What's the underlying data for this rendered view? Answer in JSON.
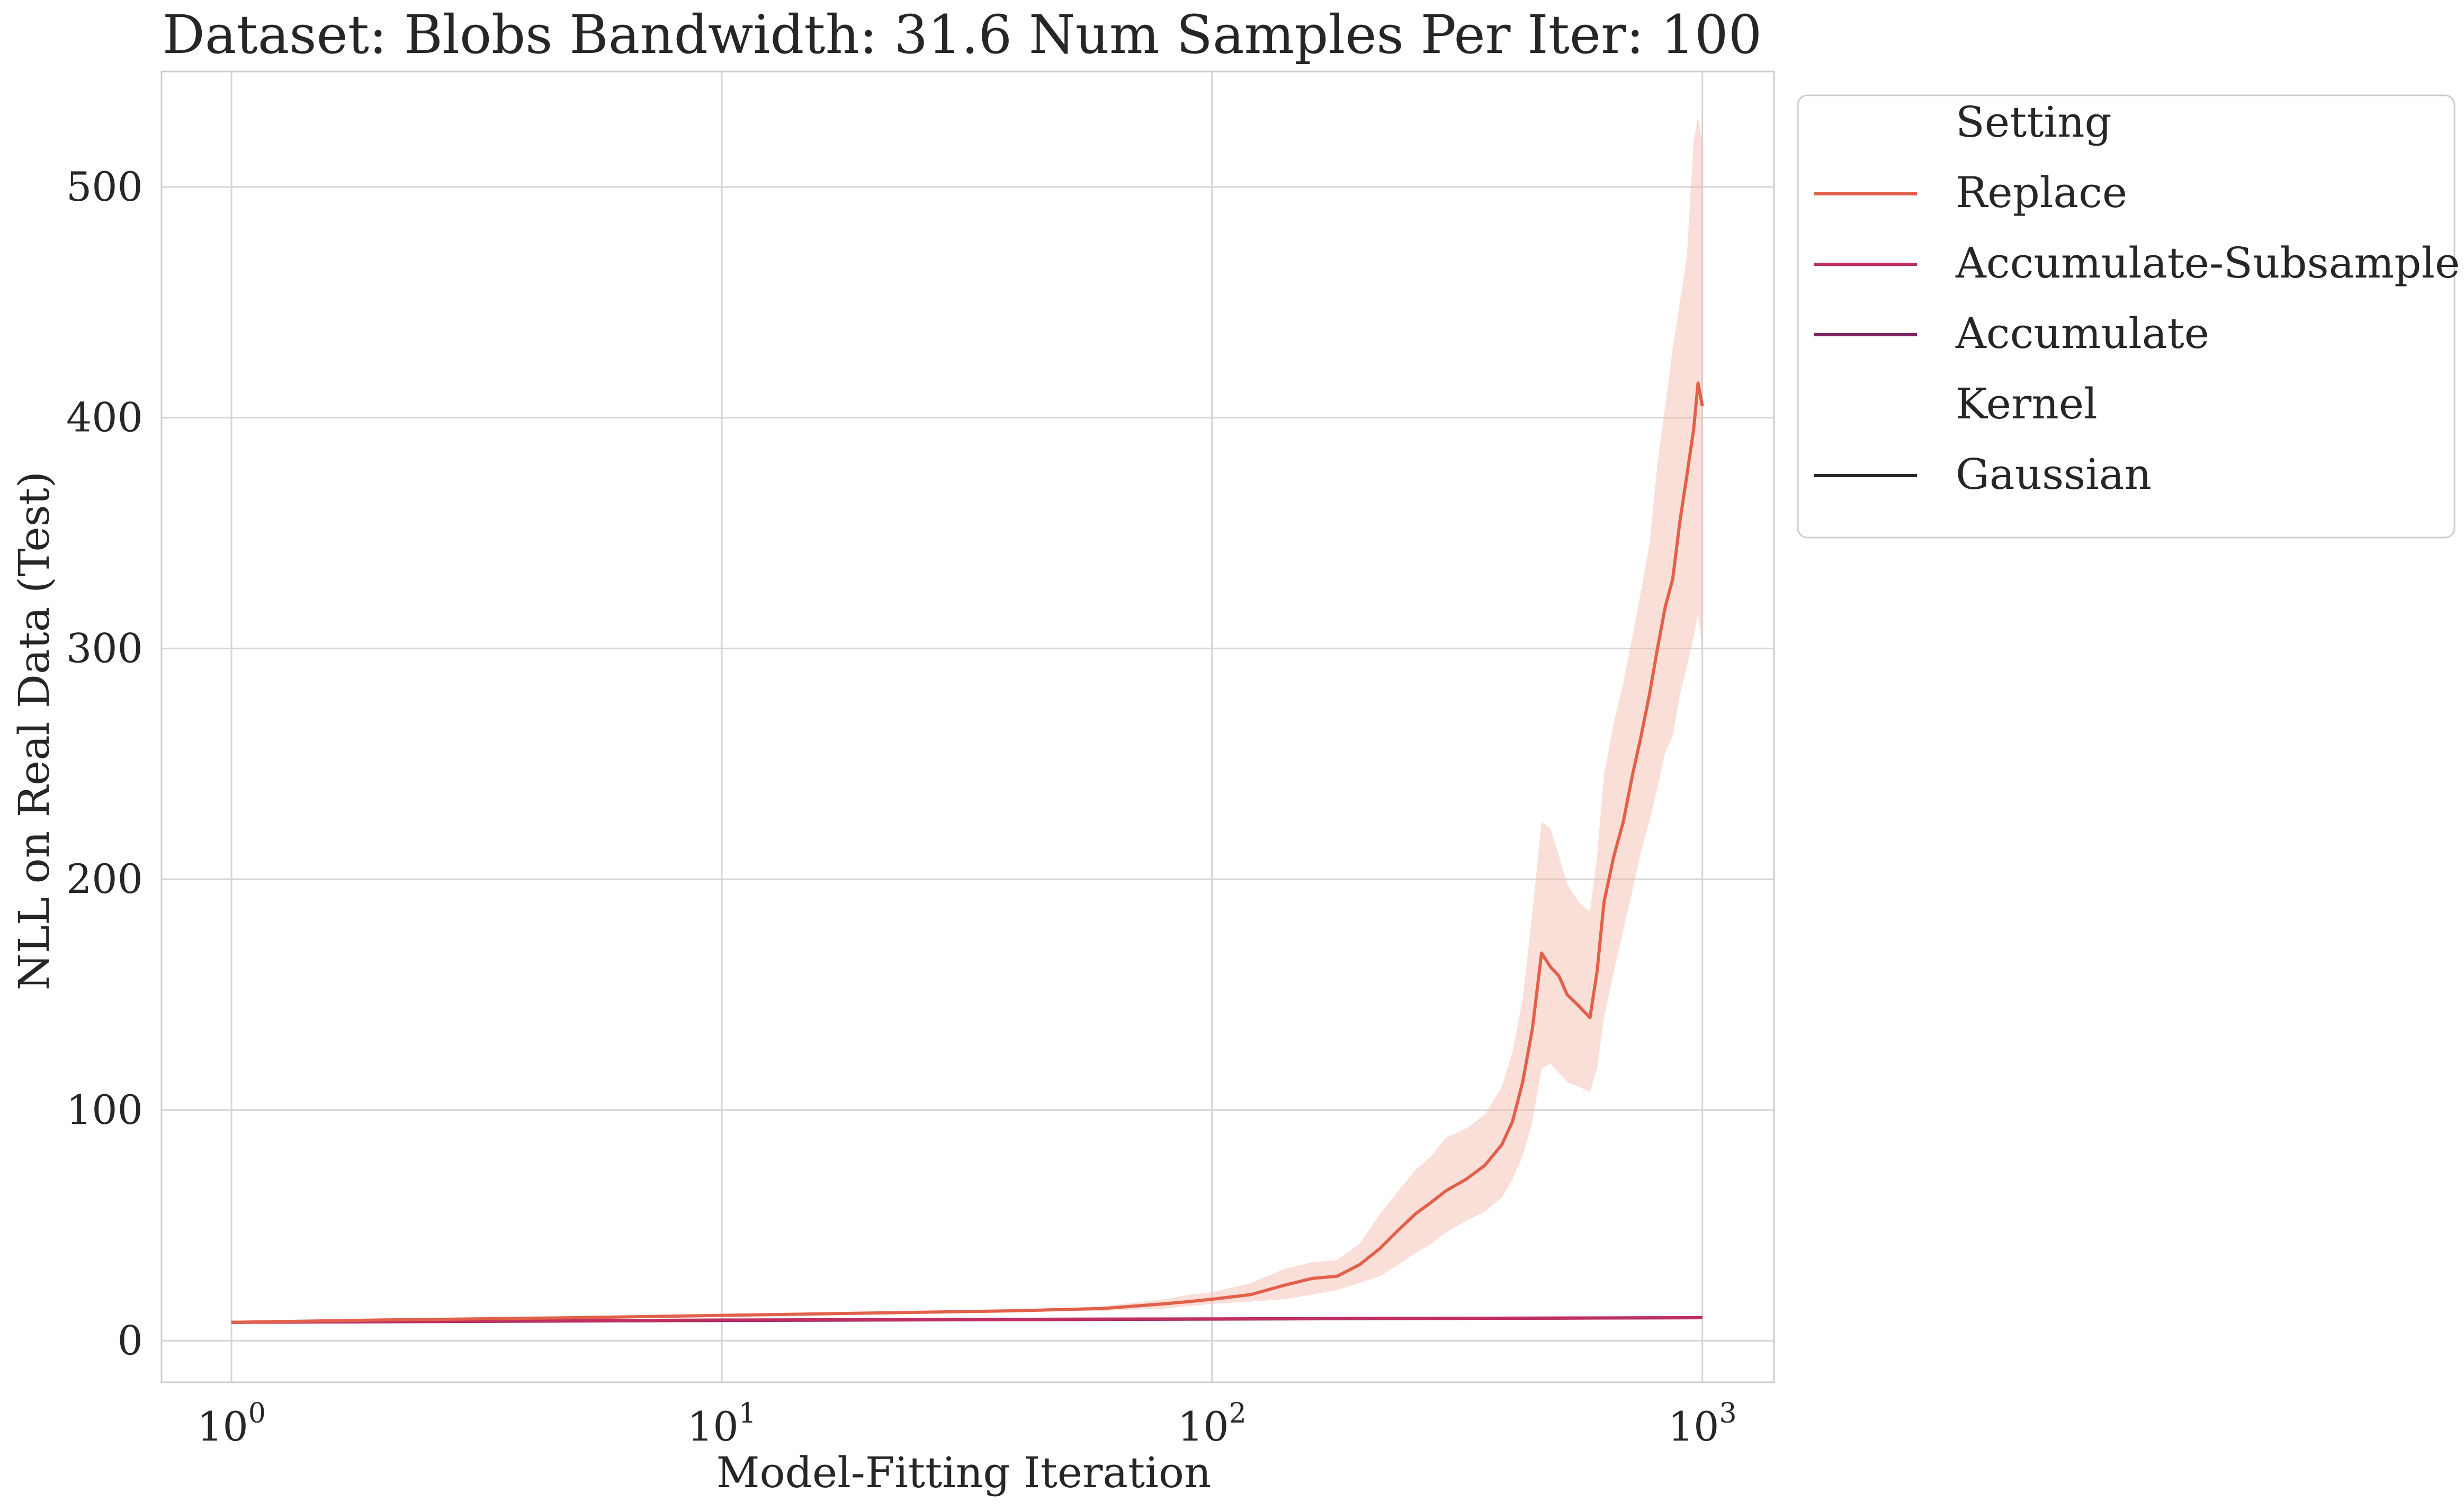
{
  "chart_data": {
    "type": "line",
    "title": "Dataset: Blobs Bandwidth: 31.6 Num Samples Per Iter: 100",
    "xlabel": "Model-Fitting Iteration",
    "ylabel": "NLL on Real Data (Test)",
    "xscale": "log",
    "xlim": [
      0.72,
      1400
    ],
    "ylim": [
      -18,
      550
    ],
    "grid": true,
    "x_ticks": [
      {
        "base": "10",
        "exp": "0",
        "value": 1
      },
      {
        "base": "10",
        "exp": "1",
        "value": 10
      },
      {
        "base": "10",
        "exp": "2",
        "value": 100
      },
      {
        "base": "10",
        "exp": "3",
        "value": 1000
      }
    ],
    "y_ticks": [
      0,
      100,
      200,
      300,
      400,
      500
    ],
    "legend": {
      "placement": "outside upper right",
      "entries": [
        {
          "label": "Setting",
          "kind": "header"
        },
        {
          "label": "Replace",
          "kind": "line",
          "color": "#e2604a"
        },
        {
          "label": "Accumulate-Subsample",
          "kind": "line",
          "color": "#c02e62"
        },
        {
          "label": "Accumulate",
          "kind": "line",
          "color": "#7b2565"
        },
        {
          "label": "Kernel",
          "kind": "header"
        },
        {
          "label": "Gaussian",
          "kind": "line",
          "color": "#262626"
        }
      ]
    },
    "series": [
      {
        "name": "Replace",
        "color": "#e2604a",
        "band_color": "#f4b6a8",
        "x": [
          1,
          2,
          5,
          10,
          20,
          40,
          60,
          80,
          90,
          100,
          120,
          140,
          160,
          180,
          200,
          220,
          240,
          260,
          280,
          300,
          330,
          360,
          390,
          410,
          430,
          450,
          470,
          490,
          510,
          530,
          560,
          590,
          610,
          630,
          660,
          690,
          720,
          750,
          780,
          810,
          840,
          870,
          900,
          930,
          960,
          980,
          1000
        ],
        "y": [
          8,
          9,
          10,
          11,
          12,
          13,
          14,
          16,
          17,
          18,
          20,
          24,
          27,
          28,
          33,
          40,
          48,
          55,
          60,
          65,
          70,
          76,
          85,
          95,
          112,
          135,
          168,
          162,
          158,
          150,
          145,
          140,
          160,
          190,
          210,
          225,
          245,
          262,
          280,
          300,
          318,
          330,
          355,
          375,
          395,
          415,
          405
        ],
        "lower": [
          8,
          9,
          10,
          11,
          12,
          13,
          13,
          14,
          15,
          16,
          17,
          18,
          20,
          22,
          25,
          28,
          33,
          38,
          42,
          47,
          52,
          56,
          62,
          70,
          80,
          95,
          118,
          120,
          116,
          112,
          110,
          108,
          118,
          140,
          160,
          178,
          195,
          212,
          225,
          240,
          255,
          262,
          280,
          292,
          305,
          315,
          300
        ],
        "upper": [
          8,
          9,
          10,
          11,
          12,
          13,
          15,
          18,
          20,
          21,
          25,
          31,
          34,
          35,
          42,
          55,
          65,
          74,
          80,
          88,
          92,
          98,
          110,
          125,
          148,
          185,
          225,
          222,
          210,
          198,
          190,
          186,
          210,
          245,
          268,
          285,
          305,
          325,
          345,
          380,
          405,
          430,
          450,
          470,
          520,
          530,
          520
        ]
      },
      {
        "name": "Accumulate-Subsample",
        "color": "#c02e62",
        "x": [
          1,
          10,
          100,
          1000
        ],
        "y": [
          8,
          9,
          9.5,
          10
        ]
      },
      {
        "name": "Accumulate",
        "color": "#7b2565",
        "x": [
          1,
          10,
          100,
          1000
        ],
        "y": [
          8,
          8.8,
          9.4,
          10
        ]
      }
    ]
  }
}
